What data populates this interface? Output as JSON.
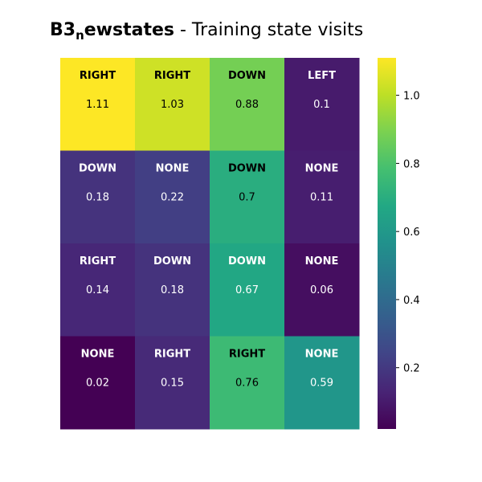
{
  "chart_data": {
    "type": "heatmap",
    "title": {
      "bold_prefix": "B3",
      "subscript": "n",
      "bold_suffix": "ewstates",
      "rest": " - Training state visits"
    },
    "rows": 4,
    "cols": 4,
    "cells": [
      [
        {
          "action": "RIGHT",
          "value": 1.11,
          "label": "1.11"
        },
        {
          "action": "RIGHT",
          "value": 1.03,
          "label": "1.03"
        },
        {
          "action": "DOWN",
          "value": 0.88,
          "label": "0.88"
        },
        {
          "action": "LEFT",
          "value": 0.1,
          "label": "0.1"
        }
      ],
      [
        {
          "action": "DOWN",
          "value": 0.18,
          "label": "0.18"
        },
        {
          "action": "NONE",
          "value": 0.22,
          "label": "0.22"
        },
        {
          "action": "DOWN",
          "value": 0.7,
          "label": "0.7"
        },
        {
          "action": "NONE",
          "value": 0.11,
          "label": "0.11"
        }
      ],
      [
        {
          "action": "RIGHT",
          "value": 0.14,
          "label": "0.14"
        },
        {
          "action": "DOWN",
          "value": 0.18,
          "label": "0.18"
        },
        {
          "action": "DOWN",
          "value": 0.67,
          "label": "0.67"
        },
        {
          "action": "NONE",
          "value": 0.06,
          "label": "0.06"
        }
      ],
      [
        {
          "action": "NONE",
          "value": 0.02,
          "label": "0.02"
        },
        {
          "action": "RIGHT",
          "value": 0.15,
          "label": "0.15"
        },
        {
          "action": "RIGHT",
          "value": 0.76,
          "label": "0.76"
        },
        {
          "action": "NONE",
          "value": 0.59,
          "label": "0.59"
        }
      ]
    ],
    "colorbar": {
      "vmin": 0.02,
      "vmax": 1.11,
      "ticks": [
        0.2,
        0.4,
        0.6,
        0.8,
        1.0
      ],
      "tick_labels": [
        "0.2",
        "0.4",
        "0.6",
        "0.8",
        "1.0"
      ],
      "colormap": "viridis"
    }
  }
}
